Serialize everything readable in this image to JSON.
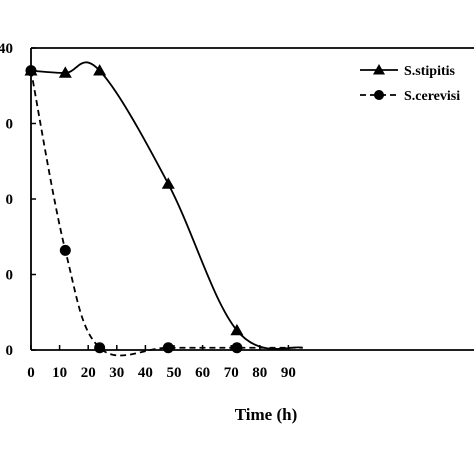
{
  "chart_data": {
    "type": "line",
    "xlabel": "Time (h)",
    "x_ticks": [
      "0",
      "10",
      "20",
      "30",
      "40",
      "50",
      "60",
      "70",
      "80",
      "90"
    ],
    "y_tick_labels": [
      "0",
      "0",
      "0",
      "0",
      "40"
    ],
    "xlim": [
      0,
      95
    ],
    "ylim": [
      0,
      40
    ],
    "legend_position": "top-right",
    "series": [
      {
        "name": "S.stipitis",
        "marker": "triangle",
        "line": "solid",
        "color": "#000000",
        "x": [
          0,
          12,
          24,
          48,
          72,
          95
        ],
        "y": [
          37,
          36.7,
          37,
          22,
          2.6,
          0.3
        ]
      },
      {
        "name": "S.cerevisi",
        "marker": "circle",
        "line": "dashed",
        "color": "#000000",
        "x": [
          0,
          12,
          24,
          48,
          72,
          95
        ],
        "y": [
          37,
          13.2,
          0.3,
          0.3,
          0.3,
          0.3
        ]
      }
    ]
  }
}
